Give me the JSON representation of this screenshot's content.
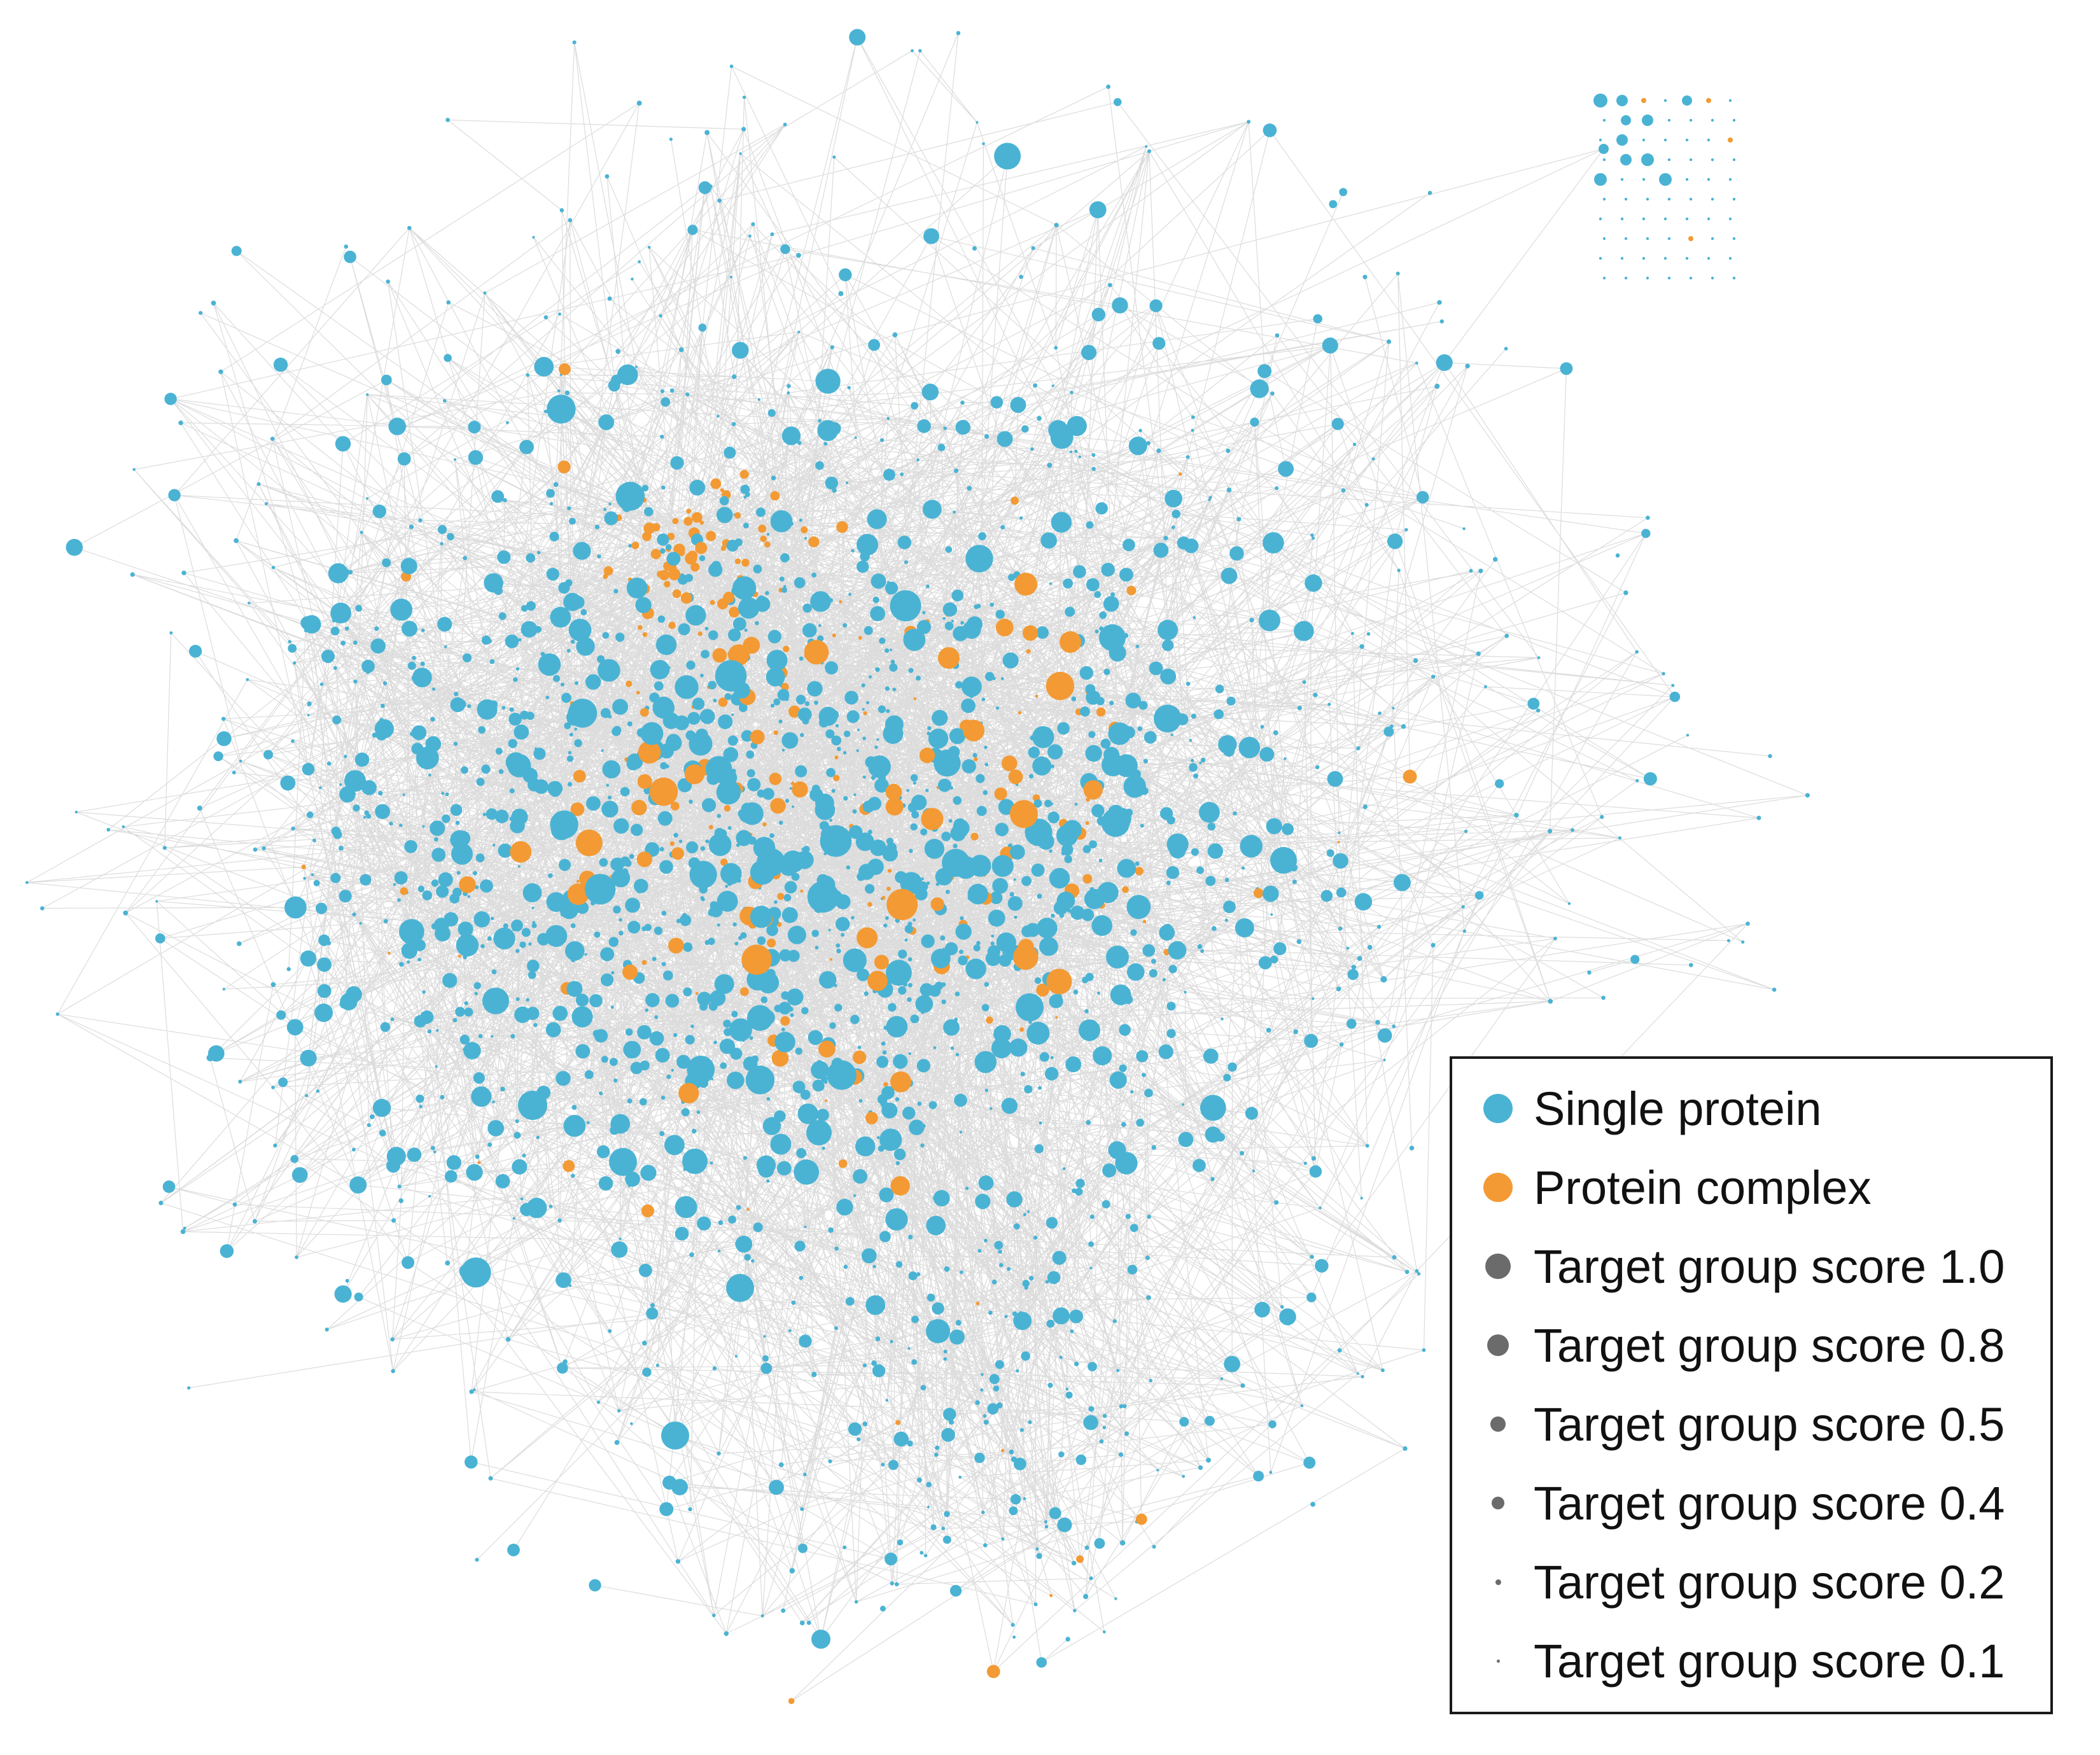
{
  "colors": {
    "single_protein": "#4ab3d4",
    "protein_complex": "#f39a34",
    "edge": "#9a9a9a",
    "score_marker": "#6b6b6b"
  },
  "legend": {
    "items": [
      {
        "label": "Single protein",
        "marker": "single_protein"
      },
      {
        "label": "Protein complex",
        "marker": "protein_complex"
      },
      {
        "label": "Target group score 1.0",
        "score": 1.0
      },
      {
        "label": "Target group score 0.8",
        "score": 0.8
      },
      {
        "label": "Target group score 0.5",
        "score": 0.5
      },
      {
        "label": "Target group score 0.4",
        "score": 0.4
      },
      {
        "label": "Target group score 0.2",
        "score": 0.2
      },
      {
        "label": "Target group score 0.1",
        "score": 0.1
      }
    ]
  }
}
